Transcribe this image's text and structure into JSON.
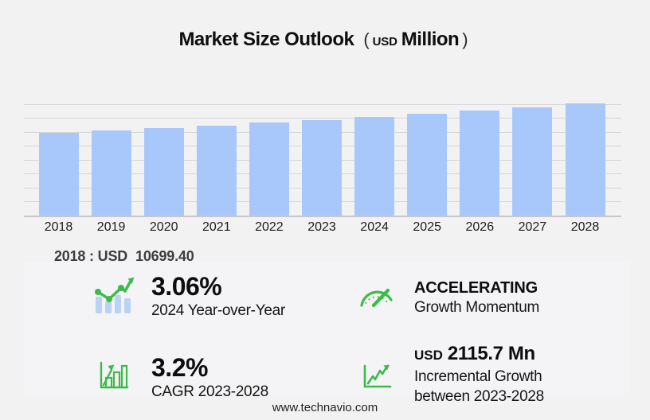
{
  "title": {
    "main": "Market Size Outlook",
    "open_paren": "(",
    "currency": "USD",
    "unit": "Million",
    "close_paren": ")"
  },
  "chart_data": {
    "type": "bar",
    "title": "Market Size Outlook (USD Million)",
    "xlabel": "",
    "ylabel": "USD Million",
    "categories": [
      "2018",
      "2019",
      "2020",
      "2021",
      "2022",
      "2023",
      "2024",
      "2025",
      "2026",
      "2027",
      "2028"
    ],
    "values": [
      10699.4,
      11019.0,
      11348.1,
      11687.0,
      12036.0,
      12404.4,
      12784.0,
      13193.1,
      13615.3,
      14051.0,
      14520.1
    ],
    "ylim": [
      0,
      15500
    ],
    "grid": true,
    "legend_position": "none",
    "bar_color": "#a8c8fb"
  },
  "annotation": {
    "label": "2018 : USD",
    "value": "10699.40"
  },
  "stats": {
    "yoy": {
      "icon": "bar-chart-trend-icon",
      "value": "3.06%",
      "label": "2024 Year-over-Year"
    },
    "momentum": {
      "icon": "gauge-icon",
      "value": "ACCELERATING",
      "label": "Growth Momentum"
    },
    "cagr": {
      "icon": "bar-growth-icon",
      "value": "3.2%",
      "label": "CAGR 2023-2028"
    },
    "incremental": {
      "icon": "line-growth-icon",
      "prefix": "USD",
      "value": "2115.7 Mn",
      "label_line1": "Incremental Growth",
      "label_line2": "between 2023-2028"
    }
  },
  "footer": {
    "website": "www.technavio.com"
  },
  "colors": {
    "background": "#f2f2f3",
    "panel": "#f4f4f6",
    "bar": "#a8c8fb",
    "icon_bar_blue": "#b9d3f2",
    "accent_green": "#3dbb4a",
    "gridline": "#d6d6d9",
    "axis": "#c7c7cb",
    "text_dark": "#0d0d0d",
    "annotation_gray": "#3d3d3d"
  }
}
